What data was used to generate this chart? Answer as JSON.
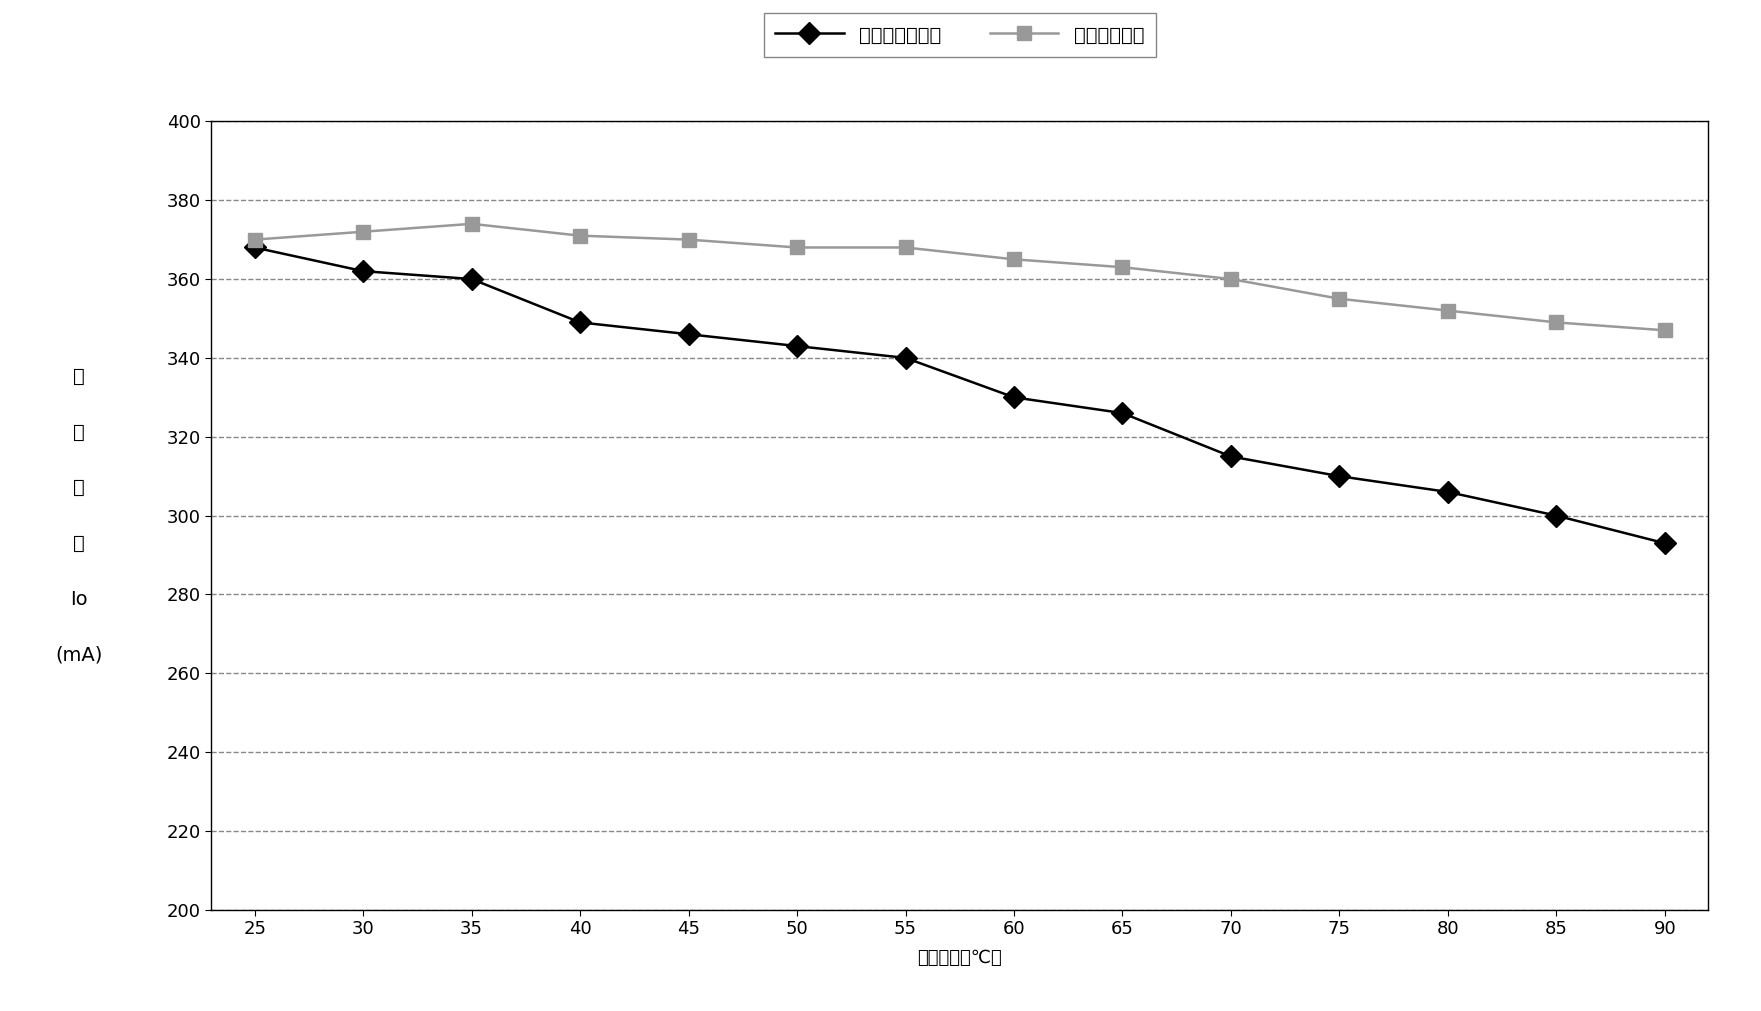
{
  "x": [
    25,
    30,
    35,
    40,
    45,
    50,
    55,
    60,
    65,
    70,
    75,
    80,
    85,
    90
  ],
  "series1_name": "不使用热敏电阳",
  "series1_values": [
    368,
    362,
    360,
    349,
    346,
    343,
    340,
    330,
    326,
    315,
    310,
    306,
    300,
    293
  ],
  "series2_name": "使用热敏电阳",
  "series2_values": [
    370,
    372,
    374,
    371,
    370,
    368,
    368,
    365,
    363,
    360,
    355,
    352,
    349,
    347
  ],
  "series1_color": "#000000",
  "series2_color": "#999999",
  "ylabel_lines": [
    "输",
    "出",
    "电",
    "流",
    "Io",
    "(mA)"
  ],
  "xlabel": "环境温度（℃）",
  "ylim": [
    200,
    400
  ],
  "yticks": [
    200,
    220,
    240,
    260,
    280,
    300,
    320,
    340,
    360,
    380,
    400
  ],
  "xticks": [
    25,
    30,
    35,
    40,
    45,
    50,
    55,
    60,
    65,
    70,
    75,
    80,
    85,
    90
  ],
  "background_color": "#ffffff",
  "plot_background": "#ffffff",
  "grid_color": "#888888",
  "title_fontsize": 14,
  "axis_fontsize": 13,
  "tick_fontsize": 13,
  "legend_fontsize": 14
}
